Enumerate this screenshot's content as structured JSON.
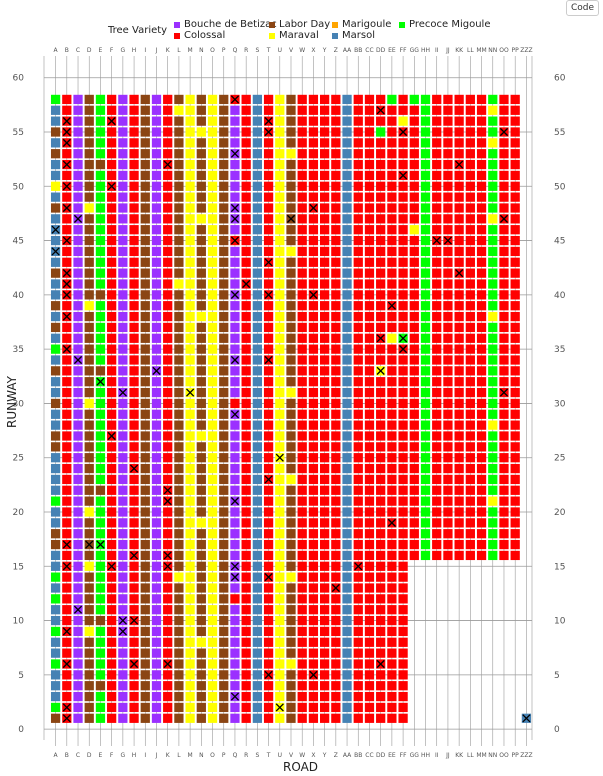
{
  "toolbar": {
    "code_label": "Code"
  },
  "legend": {
    "title": "Tree Variety",
    "items": [
      {
        "label": "Bouche de Betizac",
        "color": "#9b30ff"
      },
      {
        "label": "Colossal",
        "color": "#ff0000"
      },
      {
        "label": "Labor Day",
        "color": "#8b4513"
      },
      {
        "label": "Maraval",
        "color": "#ffff00"
      },
      {
        "label": "Marigoule",
        "color": "#ffa500"
      },
      {
        "label": "Marsol",
        "color": "#4682b4"
      },
      {
        "label": "Precoce Migoule",
        "color": "#00ff00"
      }
    ]
  },
  "chart_data": {
    "type": "heatmap",
    "xlabel": "ROAD",
    "ylabel": "RUNWAY",
    "x_categories": [
      "A",
      "B",
      "C",
      "D",
      "E",
      "F",
      "G",
      "H",
      "I",
      "J",
      "K",
      "L",
      "M",
      "N",
      "O",
      "P",
      "Q",
      "R",
      "S",
      "T",
      "U",
      "V",
      "W",
      "X",
      "Y",
      "Z",
      "AA",
      "BB",
      "CC",
      "DD",
      "EE",
      "FF",
      "GG",
      "HH",
      "II",
      "JJ",
      "KK",
      "LL",
      "MM",
      "NN",
      "OO",
      "PP",
      "ZZZ"
    ],
    "y_ticks": [
      0,
      5,
      10,
      15,
      20,
      25,
      30,
      35,
      40,
      45,
      50,
      55,
      60
    ],
    "ylim": [
      -1,
      62
    ],
    "column_varieties": [
      "Marsol",
      "Colossal",
      "Bouche de Betizac",
      "Labor Day",
      "Precoce Migoule",
      "Colossal",
      "Bouche de Betizac",
      "Colossal",
      "Labor Day",
      "Bouche de Betizac",
      "Colossal",
      "Labor Day",
      "Maraval",
      "Labor Day",
      "Maraval",
      "Labor Day",
      "Bouche de Betizac",
      "Colossal",
      "Marsol",
      "Colossal",
      "Maraval",
      "Labor Day",
      "Colossal",
      "Colossal",
      "Colossal",
      "Colossal",
      "Marsol",
      "Colossal",
      "Colossal",
      "Colossal",
      "Colossal",
      "Colossal",
      "Colossal",
      "Precoce Migoule",
      "Colossal",
      "Colossal",
      "Colossal",
      "Colossal",
      "Colossal",
      "Precoce Migoule",
      "Colossal",
      "Colossal",
      "Marsol"
    ],
    "column_max_row": [
      58,
      58,
      58,
      58,
      58,
      58,
      58,
      58,
      58,
      58,
      58,
      58,
      58,
      58,
      58,
      58,
      58,
      58,
      58,
      58,
      58,
      58,
      58,
      58,
      58,
      58,
      58,
      58,
      58,
      58,
      58,
      58,
      58,
      58,
      58,
      58,
      58,
      58,
      58,
      58,
      58,
      58,
      1
    ],
    "column_min_row": [
      1,
      1,
      1,
      1,
      1,
      1,
      1,
      1,
      1,
      1,
      1,
      1,
      1,
      1,
      1,
      1,
      1,
      1,
      1,
      1,
      1,
      1,
      1,
      1,
      1,
      1,
      1,
      1,
      1,
      1,
      1,
      1,
      16,
      16,
      16,
      16,
      16,
      16,
      16,
      16,
      16,
      16,
      1
    ],
    "mixed_cells": [
      {
        "col": "A",
        "row": 1,
        "variety": "Labor Day"
      },
      {
        "col": "A",
        "row": 2,
        "variety": "Precoce Migoule"
      },
      {
        "col": "A",
        "row": 6,
        "variety": "Precoce Migoule"
      },
      {
        "col": "A",
        "row": 9,
        "variety": "Precoce Migoule"
      },
      {
        "col": "A",
        "row": 12,
        "variety": "Precoce Migoule"
      },
      {
        "col": "A",
        "row": 14,
        "variety": "Precoce Migoule"
      },
      {
        "col": "A",
        "row": 17,
        "variety": "Labor Day"
      },
      {
        "col": "A",
        "row": 18,
        "variety": "Labor Day"
      },
      {
        "col": "A",
        "row": 21,
        "variety": "Precoce Migoule"
      },
      {
        "col": "A",
        "row": 26,
        "variety": "Labor Day"
      },
      {
        "col": "A",
        "row": 27,
        "variety": "Labor Day"
      },
      {
        "col": "A",
        "row": 30,
        "variety": "Labor Day"
      },
      {
        "col": "A",
        "row": 33,
        "variety": "Labor Day"
      },
      {
        "col": "A",
        "row": 35,
        "variety": "Precoce Migoule"
      },
      {
        "col": "A",
        "row": 37,
        "variety": "Labor Day"
      },
      {
        "col": "A",
        "row": 39,
        "variety": "Labor Day"
      },
      {
        "col": "A",
        "row": 42,
        "variety": "Labor Day"
      },
      {
        "col": "A",
        "row": 48,
        "variety": "Labor Day"
      },
      {
        "col": "A",
        "row": 50,
        "variety": "Maraval"
      },
      {
        "col": "A",
        "row": 53,
        "variety": "Labor Day"
      },
      {
        "col": "A",
        "row": 55,
        "variety": "Labor Day"
      },
      {
        "col": "A",
        "row": 58,
        "variety": "Precoce Migoule"
      },
      {
        "col": "D",
        "row": 9,
        "variety": "Maraval"
      },
      {
        "col": "D",
        "row": 15,
        "variety": "Maraval"
      },
      {
        "col": "D",
        "row": 20,
        "variety": "Maraval"
      },
      {
        "col": "D",
        "row": 30,
        "variety": "Maraval"
      },
      {
        "col": "D",
        "row": 39,
        "variety": "Maraval"
      },
      {
        "col": "D",
        "row": 48,
        "variety": "Maraval"
      },
      {
        "col": "E",
        "row": 4,
        "variety": "Labor Day"
      },
      {
        "col": "E",
        "row": 10,
        "variety": "Labor Day"
      },
      {
        "col": "E",
        "row": 22,
        "variety": "Labor Day"
      },
      {
        "col": "E",
        "row": 33,
        "variety": "Labor Day"
      },
      {
        "col": "E",
        "row": 40,
        "variety": "Labor Day"
      },
      {
        "col": "E",
        "row": 52,
        "variety": "Labor Day"
      },
      {
        "col": "N",
        "row": 8,
        "variety": "Maraval"
      },
      {
        "col": "N",
        "row": 19,
        "variety": "Maraval"
      },
      {
        "col": "N",
        "row": 27,
        "variety": "Maraval"
      },
      {
        "col": "N",
        "row": 38,
        "variety": "Maraval"
      },
      {
        "col": "N",
        "row": 47,
        "variety": "Maraval"
      },
      {
        "col": "N",
        "row": 55,
        "variety": "Maraval"
      },
      {
        "col": "V",
        "row": 6,
        "variety": "Maraval"
      },
      {
        "col": "V",
        "row": 14,
        "variety": "Maraval"
      },
      {
        "col": "V",
        "row": 23,
        "variety": "Maraval"
      },
      {
        "col": "V",
        "row": 31,
        "variety": "Maraval"
      },
      {
        "col": "V",
        "row": 44,
        "variety": "Maraval"
      },
      {
        "col": "V",
        "row": 53,
        "variety": "Maraval"
      },
      {
        "col": "DD",
        "row": 55,
        "variety": "Precoce Migoule"
      },
      {
        "col": "DD",
        "row": 33,
        "variety": "Maraval"
      },
      {
        "col": "EE",
        "row": 58,
        "variety": "Precoce Migoule"
      },
      {
        "col": "EE",
        "row": 36,
        "variety": "Maraval"
      },
      {
        "col": "FF",
        "row": 36,
        "variety": "Precoce Migoule"
      },
      {
        "col": "FF",
        "row": 56,
        "variety": "Maraval"
      },
      {
        "col": "GG",
        "row": 58,
        "variety": "Precoce Migoule"
      },
      {
        "col": "GG",
        "row": 46,
        "variety": "Maraval"
      },
      {
        "col": "NN",
        "row": 57,
        "variety": "Maraval"
      },
      {
        "col": "NN",
        "row": 54,
        "variety": "Maraval"
      },
      {
        "col": "NN",
        "row": 47,
        "variety": "Maraval"
      },
      {
        "col": "NN",
        "row": 38,
        "variety": "Maraval"
      },
      {
        "col": "NN",
        "row": 28,
        "variety": "Maraval"
      },
      {
        "col": "NN",
        "row": 21,
        "variety": "Maraval"
      },
      {
        "col": "Q",
        "row": 58,
        "variety": "Colossal"
      },
      {
        "col": "Q",
        "row": 45,
        "variety": "Colossal"
      },
      {
        "col": "Q",
        "row": 30,
        "variety": "Colossal"
      },
      {
        "col": "Q",
        "row": 12,
        "variety": "Colossal"
      },
      {
        "col": "L",
        "row": 57,
        "variety": "Maraval"
      },
      {
        "col": "L",
        "row": 41,
        "variety": "Maraval"
      },
      {
        "col": "L",
        "row": 14,
        "variety": "Maraval"
      }
    ],
    "dead_trees": [
      {
        "col": "B",
        "row": 1
      },
      {
        "col": "B",
        "row": 2
      },
      {
        "col": "B",
        "row": 6
      },
      {
        "col": "B",
        "row": 9
      },
      {
        "col": "B",
        "row": 17
      },
      {
        "col": "B",
        "row": 35
      },
      {
        "col": "B",
        "row": 38
      },
      {
        "col": "B",
        "row": 40
      },
      {
        "col": "B",
        "row": 41
      },
      {
        "col": "B",
        "row": 42
      },
      {
        "col": "B",
        "row": 45
      },
      {
        "col": "B",
        "row": 48
      },
      {
        "col": "B",
        "row": 50
      },
      {
        "col": "B",
        "row": 52
      },
      {
        "col": "B",
        "row": 54
      },
      {
        "col": "B",
        "row": 55
      },
      {
        "col": "B",
        "row": 56
      },
      {
        "col": "A",
        "row": 44
      },
      {
        "col": "A",
        "row": 46
      },
      {
        "col": "C",
        "row": 11
      },
      {
        "col": "C",
        "row": 34
      },
      {
        "col": "C",
        "row": 47
      },
      {
        "col": "D",
        "row": 17
      },
      {
        "col": "E",
        "row": 32
      },
      {
        "col": "F",
        "row": 15
      },
      {
        "col": "F",
        "row": 27
      },
      {
        "col": "F",
        "row": 50
      },
      {
        "col": "F",
        "row": 56
      },
      {
        "col": "G",
        "row": 9
      },
      {
        "col": "G",
        "row": 10
      },
      {
        "col": "G",
        "row": 31
      },
      {
        "col": "H",
        "row": 6
      },
      {
        "col": "H",
        "row": 10
      },
      {
        "col": "H",
        "row": 16
      },
      {
        "col": "H",
        "row": 24
      },
      {
        "col": "J",
        "row": 33
      },
      {
        "col": "K",
        "row": 6
      },
      {
        "col": "K",
        "row": 15
      },
      {
        "col": "K",
        "row": 16
      },
      {
        "col": "K",
        "row": 21
      },
      {
        "col": "K",
        "row": 22
      },
      {
        "col": "K",
        "row": 52
      },
      {
        "col": "M",
        "row": 31
      },
      {
        "col": "Q",
        "row": 3
      },
      {
        "col": "Q",
        "row": 14
      },
      {
        "col": "Q",
        "row": 15
      },
      {
        "col": "Q",
        "row": 21
      },
      {
        "col": "Q",
        "row": 29
      },
      {
        "col": "Q",
        "row": 34
      },
      {
        "col": "Q",
        "row": 40
      },
      {
        "col": "Q",
        "row": 45
      },
      {
        "col": "Q",
        "row": 47
      },
      {
        "col": "Q",
        "row": 48
      },
      {
        "col": "Q",
        "row": 53
      },
      {
        "col": "Q",
        "row": 58
      },
      {
        "col": "R",
        "row": 41
      },
      {
        "col": "T",
        "row": 5
      },
      {
        "col": "T",
        "row": 14
      },
      {
        "col": "T",
        "row": 23
      },
      {
        "col": "T",
        "row": 34
      },
      {
        "col": "T",
        "row": 40
      },
      {
        "col": "T",
        "row": 43
      },
      {
        "col": "T",
        "row": 55
      },
      {
        "col": "T",
        "row": 56
      },
      {
        "col": "U",
        "row": 2
      },
      {
        "col": "U",
        "row": 25
      },
      {
        "col": "V",
        "row": 47
      },
      {
        "col": "X",
        "row": 5
      },
      {
        "col": "X",
        "row": 40
      },
      {
        "col": "X",
        "row": 48
      },
      {
        "col": "Z",
        "row": 13
      },
      {
        "col": "BB",
        "row": 15
      },
      {
        "col": "DD",
        "row": 6
      },
      {
        "col": "DD",
        "row": 33
      },
      {
        "col": "DD",
        "row": 36
      },
      {
        "col": "DD",
        "row": 57
      },
      {
        "col": "EE",
        "row": 19
      },
      {
        "col": "EE",
        "row": 39
      },
      {
        "col": "FF",
        "row": 35
      },
      {
        "col": "FF",
        "row": 36
      },
      {
        "col": "FF",
        "row": 51
      },
      {
        "col": "FF",
        "row": 55
      },
      {
        "col": "II",
        "row": 45
      },
      {
        "col": "JJ",
        "row": 45
      },
      {
        "col": "KK",
        "row": 42
      },
      {
        "col": "KK",
        "row": 52
      },
      {
        "col": "OO",
        "row": 31
      },
      {
        "col": "OO",
        "row": 47
      },
      {
        "col": "OO",
        "row": 55
      },
      {
        "col": "ZZZ",
        "row": 1
      },
      {
        "col": "B",
        "row": 15
      },
      {
        "col": "E",
        "row": 17
      }
    ]
  },
  "colors": {
    "bouche_de_betizac": "#9b30ff",
    "colossal": "#ff0000",
    "labor_day": "#8b4513",
    "maraval": "#ffff00",
    "marigoule": "#ffa500",
    "marsol": "#4682b4",
    "precoce_migoule": "#00ff00",
    "grid": "#9a9a9a",
    "dead_marker": "#000000"
  }
}
